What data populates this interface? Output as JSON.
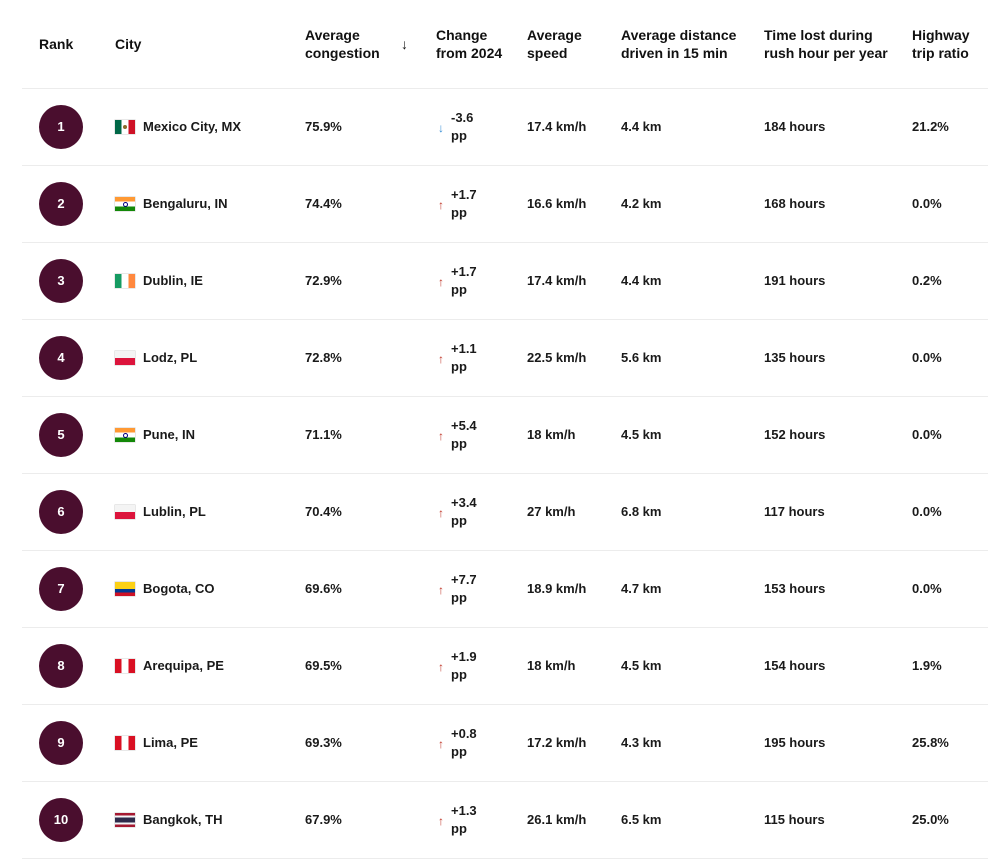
{
  "columns": {
    "rank": "Rank",
    "city": "City",
    "congestion": "Average congestion",
    "change": "Change from 2024",
    "speed": "Average speed",
    "distance": "Average distance driven in 15 min",
    "time_lost": "Time lost during rush hour per year",
    "highway": "Highway trip ratio"
  },
  "sort": {
    "column": "congestion",
    "direction": "descending",
    "icon": "arrow-down-icon",
    "glyph": "↓"
  },
  "rows": [
    {
      "rank": "1",
      "flag": "mx",
      "city": "Mexico City, MX",
      "congestion": "75.9%",
      "change_dir": "down",
      "change_glyph": "↓",
      "change": "-3.6 pp",
      "speed": "17.4 km/h",
      "distance": "4.4 km",
      "time_lost": "184 hours",
      "highway": "21.2%"
    },
    {
      "rank": "2",
      "flag": "in",
      "city": "Bengaluru, IN",
      "congestion": "74.4%",
      "change_dir": "up",
      "change_glyph": "↑",
      "change": "+1.7 pp",
      "speed": "16.6 km/h",
      "distance": "4.2 km",
      "time_lost": "168 hours",
      "highway": "0.0%"
    },
    {
      "rank": "3",
      "flag": "ie",
      "city": "Dublin, IE",
      "congestion": "72.9%",
      "change_dir": "up",
      "change_glyph": "↑",
      "change": "+1.7 pp",
      "speed": "17.4 km/h",
      "distance": "4.4 km",
      "time_lost": "191 hours",
      "highway": "0.2%"
    },
    {
      "rank": "4",
      "flag": "pl",
      "city": "Lodz, PL",
      "congestion": "72.8%",
      "change_dir": "up",
      "change_glyph": "↑",
      "change": "+1.1 pp",
      "speed": "22.5 km/h",
      "distance": "5.6 km",
      "time_lost": "135 hours",
      "highway": "0.0%"
    },
    {
      "rank": "5",
      "flag": "in",
      "city": "Pune, IN",
      "congestion": "71.1%",
      "change_dir": "up",
      "change_glyph": "↑",
      "change": "+5.4 pp",
      "speed": "18 km/h",
      "distance": "4.5 km",
      "time_lost": "152 hours",
      "highway": "0.0%"
    },
    {
      "rank": "6",
      "flag": "pl",
      "city": "Lublin, PL",
      "congestion": "70.4%",
      "change_dir": "up",
      "change_glyph": "↑",
      "change": "+3.4 pp",
      "speed": "27 km/h",
      "distance": "6.8 km",
      "time_lost": "117 hours",
      "highway": "0.0%"
    },
    {
      "rank": "7",
      "flag": "co",
      "city": "Bogota, CO",
      "congestion": "69.6%",
      "change_dir": "up",
      "change_glyph": "↑",
      "change": "+7.7 pp",
      "speed": "18.9 km/h",
      "distance": "4.7 km",
      "time_lost": "153 hours",
      "highway": "0.0%"
    },
    {
      "rank": "8",
      "flag": "pe",
      "city": "Arequipa, PE",
      "congestion": "69.5%",
      "change_dir": "up",
      "change_glyph": "↑",
      "change": "+1.9 pp",
      "speed": "18 km/h",
      "distance": "4.5 km",
      "time_lost": "154 hours",
      "highway": "1.9%"
    },
    {
      "rank": "9",
      "flag": "pe",
      "city": "Lima, PE",
      "congestion": "69.3%",
      "change_dir": "up",
      "change_glyph": "↑",
      "change": "+0.8 pp",
      "speed": "17.2 km/h",
      "distance": "4.3 km",
      "time_lost": "195 hours",
      "highway": "25.8%"
    },
    {
      "rank": "10",
      "flag": "th",
      "city": "Bangkok, TH",
      "congestion": "67.9%",
      "change_dir": "up",
      "change_glyph": "↑",
      "change": "+1.3 pp",
      "speed": "26.1 km/h",
      "distance": "6.5 km",
      "time_lost": "115 hours",
      "highway": "25.0%"
    }
  ],
  "colors": {
    "rank_badge": "#4a0e2e",
    "change_up": "#c0392b",
    "change_down": "#3a8fd6"
  }
}
